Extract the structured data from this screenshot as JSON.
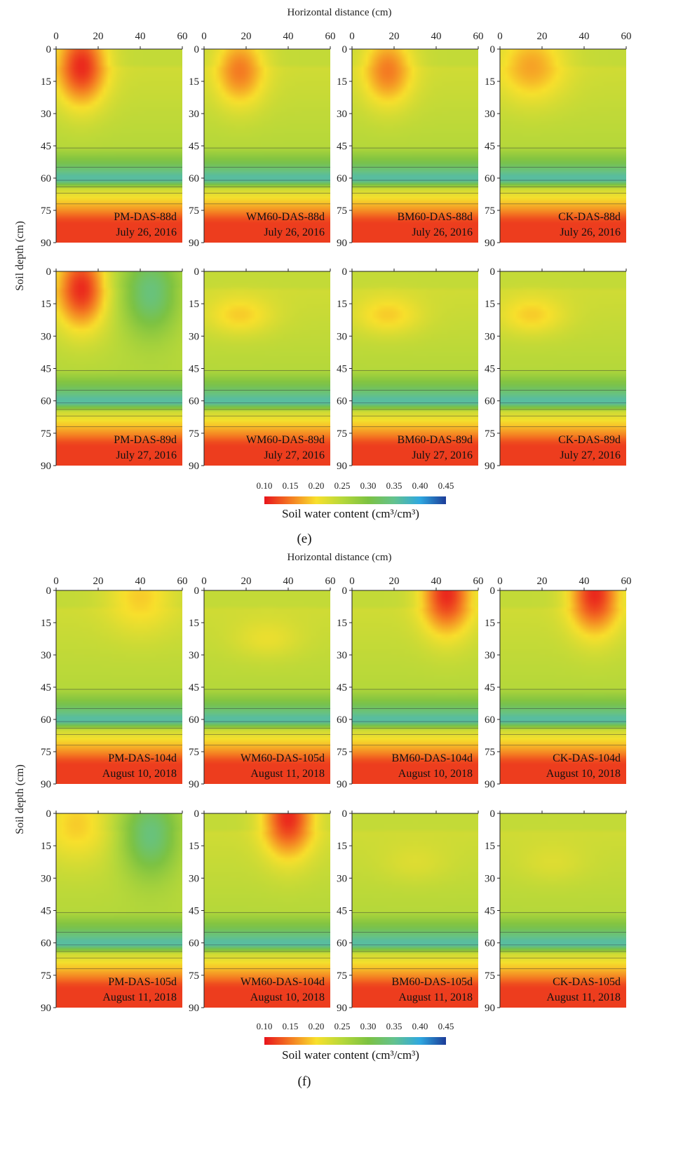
{
  "x_axis_label": "Horizontal distance (cm)",
  "y_axis_label": "Soil depth (cm)",
  "colorbar_label": "Soil water content (cm³/cm³)",
  "colorbar_ticks": [
    "0.10",
    "0.15",
    "0.20",
    "0.25",
    "0.30",
    "0.35",
    "0.40",
    "0.45"
  ],
  "colorbar_colors": [
    "#e8141c",
    "#f47a22",
    "#f8e02c",
    "#b6d83a",
    "#7cc242",
    "#63c28e",
    "#2fa8e0",
    "#1c3c98"
  ],
  "x_ticks": [
    "0",
    "20",
    "40",
    "60"
  ],
  "y_ticks": [
    "0",
    "15",
    "30",
    "45",
    "60",
    "75",
    "90"
  ],
  "chart_data": [
    {
      "type": "heatmap",
      "figure_label": "(e)",
      "x_range": [
        0,
        60
      ],
      "y_range": [
        0,
        90
      ],
      "value_range": [
        0.1,
        0.45
      ],
      "panels": [
        {
          "name": "PM-DAS-88d",
          "date": "July 26, 2016",
          "wet_x": 12,
          "wet_y": 8,
          "wet_min": 0.11,
          "moist_zone_x": null
        },
        {
          "name": "WM60-DAS-88d",
          "date": "July 26, 2016",
          "wet_x": 17,
          "wet_y": 10,
          "wet_min": 0.15,
          "moist_zone_x": null
        },
        {
          "name": "BM60-DAS-88d",
          "date": "July 26, 2016",
          "wet_x": 17,
          "wet_y": 10,
          "wet_min": 0.15,
          "moist_zone_x": null
        },
        {
          "name": "CK-DAS-88d",
          "date": "July 26, 2016",
          "wet_x": 15,
          "wet_y": 8,
          "wet_min": 0.17,
          "moist_zone_x": null
        },
        {
          "name": "PM-DAS-89d",
          "date": "July 27, 2016",
          "wet_x": 12,
          "wet_y": 8,
          "wet_min": 0.11,
          "moist_zone_x": 45
        },
        {
          "name": "WM60-DAS-89d",
          "date": "July 27, 2016",
          "wet_x": 17,
          "wet_y": 20,
          "wet_min": 0.19,
          "moist_zone_x": null
        },
        {
          "name": "BM60-DAS-89d",
          "date": "July 27, 2016",
          "wet_x": 17,
          "wet_y": 20,
          "wet_min": 0.19,
          "moist_zone_x": null
        },
        {
          "name": "CK-DAS-89d",
          "date": "July 27, 2016",
          "wet_x": 15,
          "wet_y": 20,
          "wet_min": 0.19,
          "moist_zone_x": null
        }
      ]
    },
    {
      "type": "heatmap",
      "figure_label": "(f)",
      "x_range": [
        0,
        60
      ],
      "y_range": [
        0,
        90
      ],
      "value_range": [
        0.1,
        0.45
      ],
      "panels": [
        {
          "name": "PM-DAS-104d",
          "date": "August 10, 2018",
          "wet_x": 40,
          "wet_y": 3,
          "wet_min": 0.19,
          "moist_zone_x": null
        },
        {
          "name": "WM60-DAS-105d",
          "date": "August 11, 2018",
          "wet_x": 30,
          "wet_y": 22,
          "wet_min": 0.21,
          "moist_zone_x": null
        },
        {
          "name": "BM60-DAS-104d",
          "date": "August 10, 2018",
          "wet_x": 45,
          "wet_y": 2,
          "wet_min": 0.11,
          "moist_zone_x": null
        },
        {
          "name": "CK-DAS-104d",
          "date": "August 10, 2018",
          "wet_x": 45,
          "wet_y": 2,
          "wet_min": 0.11,
          "moist_zone_x": null
        },
        {
          "name": "PM-DAS-105d",
          "date": "August 11, 2018",
          "wet_x": 10,
          "wet_y": 5,
          "wet_min": 0.19,
          "moist_zone_x": 45
        },
        {
          "name": "WM60-DAS-104d",
          "date": "August 10, 2018",
          "wet_x": 40,
          "wet_y": 2,
          "wet_min": 0.11,
          "moist_zone_x": null
        },
        {
          "name": "BM60-DAS-105d",
          "date": "August 11, 2018",
          "wet_x": 30,
          "wet_y": 22,
          "wet_min": 0.22,
          "moist_zone_x": null
        },
        {
          "name": "CK-DAS-105d",
          "date": "August 11, 2018",
          "wet_x": 25,
          "wet_y": 22,
          "wet_min": 0.22,
          "moist_zone_x": null
        }
      ]
    }
  ]
}
